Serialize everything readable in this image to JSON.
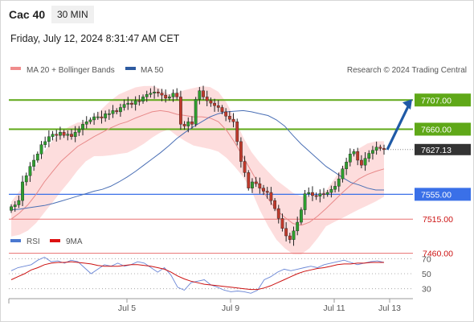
{
  "header": {
    "instrument": "Cac 40",
    "timeframe": "30 MIN",
    "datetime": "Friday, July 12, 2024 8:31:47 AM CET"
  },
  "legend": {
    "ma20": "MA 20 + Bollinger Bands",
    "ma50": "MA 50",
    "credit": "Research © 2024 Trading Central",
    "rsi": "RSI",
    "rsi_ma": "9MA"
  },
  "colors": {
    "up_candle": "#2e9e2e",
    "down_candle": "#c0392b",
    "bollinger_fill": "#fdd9d9",
    "ma20": "#e88a8a",
    "ma50": "#4a6fb5",
    "resistance": "#5fa818",
    "pivot": "#3a70e8",
    "support": "#e87070",
    "support_label": "#cc1111",
    "arrow": "#1f5aa6",
    "current_price_box": "#333333",
    "rsi": "#6a86d6",
    "rsi_ma": "#cc1111"
  },
  "chart_data": [
    {
      "type": "candlestick",
      "title": "Cac 40",
      "timeframe": "30 MIN",
      "ylim": [
        7440,
        7780
      ],
      "x_ticks": [
        "Jul 5",
        "Jul 9",
        "Jul 11",
        "Jul 13"
      ],
      "levels": [
        {
          "label": "7707.00",
          "value": 7707,
          "kind": "resistance"
        },
        {
          "label": "7660.00",
          "value": 7660,
          "kind": "resistance"
        },
        {
          "label": "7627.13",
          "value": 7627.13,
          "kind": "current"
        },
        {
          "label": "7555.00",
          "value": 7555,
          "kind": "pivot"
        },
        {
          "label": "7515.00",
          "value": 7515,
          "kind": "support"
        },
        {
          "label": "7460.00",
          "value": 7460,
          "kind": "support"
        }
      ],
      "close_series": [
        7535,
        7538,
        7545,
        7575,
        7585,
        7600,
        7610,
        7620,
        7635,
        7640,
        7648,
        7652,
        7650,
        7655,
        7650,
        7652,
        7648,
        7655,
        7660,
        7668,
        7672,
        7675,
        7680,
        7680,
        7678,
        7685,
        7685,
        7690,
        7688,
        7695,
        7700,
        7702,
        7700,
        7706,
        7705,
        7712,
        7716,
        7718,
        7720,
        7718,
        7715,
        7710,
        7712,
        7718,
        7712,
        7668,
        7665,
        7672,
        7668,
        7708,
        7722,
        7712,
        7706,
        7702,
        7698,
        7695,
        7688,
        7681,
        7676,
        7672,
        7640,
        7608,
        7590,
        7565,
        7575,
        7572,
        7565,
        7560,
        7558,
        7545,
        7532,
        7516,
        7500,
        7488,
        7482,
        7496,
        7510,
        7530,
        7556,
        7558,
        7553,
        7552,
        7556,
        7555,
        7558,
        7563,
        7568,
        7580,
        7596,
        7607,
        7620,
        7624,
        7610,
        7602,
        7613,
        7621,
        7626,
        7631,
        7629,
        7627
      ],
      "ma50_series": [
        7530,
        7531,
        7533,
        7535,
        7537,
        7540,
        7544,
        7548,
        7552,
        7556,
        7560,
        7563,
        7568,
        7575,
        7583,
        7592,
        7602,
        7612,
        7622,
        7633,
        7645,
        7655,
        7664,
        7672,
        7680,
        7685,
        7688,
        7689,
        7690,
        7688,
        7685,
        7682,
        7675,
        7665,
        7650,
        7636,
        7624,
        7612,
        7600,
        7591,
        7582,
        7574,
        7570,
        7565,
        7562,
        7562
      ],
      "ma20_series": [
        7515,
        7525,
        7538,
        7555,
        7575,
        7592,
        7608,
        7620,
        7632,
        7640,
        7648,
        7655,
        7662,
        7668,
        7672,
        7678,
        7683,
        7688,
        7690,
        7688,
        7684,
        7682,
        7680,
        7680,
        7678,
        7672,
        7658,
        7638,
        7615,
        7592,
        7568,
        7548,
        7530,
        7518,
        7508,
        7505,
        7510,
        7520,
        7532,
        7545,
        7558,
        7570,
        7580,
        7587,
        7592,
        7596
      ]
    },
    {
      "type": "line",
      "title": "RSI",
      "ylim": [
        20,
        80
      ],
      "y_ticks": [
        70,
        50,
        30
      ],
      "series": [
        {
          "name": "RSI",
          "values": [
            54,
            58,
            60,
            62,
            68,
            72,
            66,
            67,
            64,
            68,
            66,
            58,
            50,
            56,
            62,
            60,
            64,
            60,
            62,
            66,
            64,
            58,
            52,
            58,
            48,
            32,
            28,
            38,
            40,
            42,
            35,
            32,
            28,
            26,
            27,
            26,
            24,
            28,
            42,
            46,
            52,
            56,
            54,
            56,
            58,
            60,
            58,
            62,
            64,
            66,
            68,
            65,
            62,
            64,
            66,
            67,
            65
          ]
        },
        {
          "name": "9MA",
          "values": [
            42,
            46,
            50,
            55,
            58,
            62,
            64,
            65,
            65,
            66,
            65,
            64,
            63,
            61,
            60,
            60,
            60,
            61,
            62,
            62,
            61,
            60,
            58,
            56,
            52,
            47,
            43,
            40,
            38,
            36,
            35,
            34,
            33,
            32,
            31,
            30,
            29,
            29,
            31,
            34,
            38,
            42,
            46,
            50,
            53,
            55,
            57,
            58,
            60,
            62,
            63,
            63,
            64,
            64,
            65,
            65,
            65
          ]
        }
      ]
    }
  ]
}
